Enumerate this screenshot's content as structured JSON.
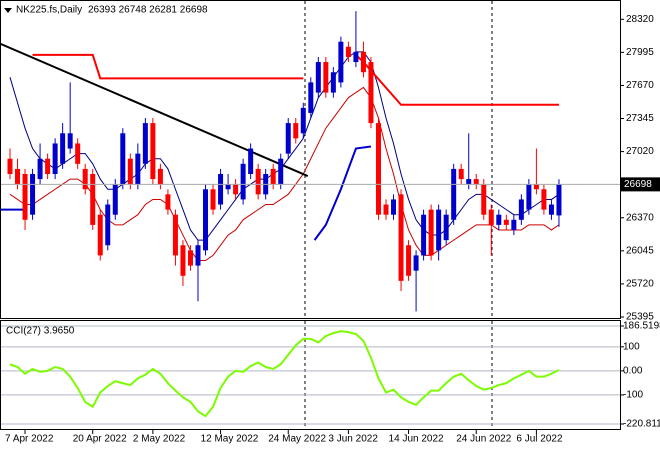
{
  "chart_data": {
    "type": "candlestick",
    "symbol": "NK225.fs,Daily",
    "ohlc_label": "26393 26748 26281 26698",
    "bull_color": "#0000cc",
    "bear_color": "#ff0000",
    "open": [
      26950,
      26850,
      26800,
      26400,
      26750,
      26950,
      26800,
      26900,
      27050,
      27100,
      26850,
      26800,
      26400,
      26100,
      26400,
      26700,
      26950,
      26700,
      26900,
      27300,
      26850,
      26600,
      26400,
      26100,
      26050,
      25900,
      26050,
      26650,
      26500,
      26650,
      26700,
      26550,
      26800,
      26850,
      26600,
      26850,
      26700,
      27000,
      27300,
      27200,
      27400,
      27600,
      27900,
      27600,
      27700,
      28050,
      27900,
      28000,
      27900,
      27300,
      26500,
      26400,
      26600,
      26100,
      25850,
      26000,
      26450,
      26050,
      26150,
      26350,
      26850,
      26700,
      26750,
      26700,
      26450,
      26300,
      26350,
      26250,
      26350,
      26450,
      26700,
      26650,
      26400,
      26393
    ],
    "high": [
      27050,
      26950,
      26850,
      26850,
      27100,
      27000,
      27150,
      27300,
      27700,
      27150,
      26900,
      26850,
      26450,
      26550,
      26750,
      27250,
      27000,
      27100,
      27350,
      27350,
      26900,
      26650,
      26450,
      26150,
      26100,
      26150,
      26700,
      26700,
      26850,
      26800,
      26750,
      26950,
      27100,
      26900,
      26850,
      26900,
      27000,
      27350,
      27350,
      27500,
      27750,
      27950,
      27950,
      27850,
      28150,
      28100,
      28400,
      28100,
      27950,
      27350,
      26550,
      26600,
      26650,
      26150,
      26050,
      26450,
      26500,
      26500,
      26450,
      26900,
      26900,
      27200,
      26800,
      26750,
      26500,
      26450,
      26400,
      26400,
      26600,
      26750,
      27050,
      26700,
      26550,
      26748
    ],
    "low": [
      26750,
      26650,
      26250,
      26350,
      26700,
      26750,
      26750,
      26850,
      27000,
      26850,
      26600,
      26250,
      25950,
      26050,
      26350,
      26650,
      26650,
      26650,
      26850,
      26700,
      26650,
      26400,
      25900,
      25700,
      25850,
      25550,
      26000,
      26400,
      26450,
      26600,
      26550,
      26500,
      26750,
      26550,
      26550,
      26650,
      26650,
      26950,
      27100,
      27150,
      27350,
      27550,
      27550,
      27550,
      27650,
      27900,
      27850,
      27750,
      27250,
      26350,
      26350,
      26350,
      25650,
      25750,
      25450,
      25950,
      25950,
      25950,
      26100,
      26300,
      26700,
      26650,
      26650,
      26350,
      26000,
      26250,
      26250,
      26200,
      26300,
      26400,
      26600,
      26400,
      26350,
      26281
    ],
    "close": [
      26800,
      26700,
      26350,
      26800,
      26950,
      26800,
      27100,
      27200,
      27200,
      26900,
      26650,
      26300,
      26000,
      26500,
      26700,
      27200,
      26700,
      27000,
      27300,
      26750,
      26700,
      26450,
      26000,
      25800,
      25900,
      26100,
      26650,
      26450,
      26800,
      26700,
      26600,
      26900,
      27050,
      26600,
      26800,
      26700,
      26950,
      27300,
      27150,
      27450,
      27700,
      27900,
      27600,
      27800,
      28100,
      27950,
      28000,
      27800,
      27300,
      26400,
      26400,
      26550,
      25750,
      25800,
      26000,
      26400,
      26000,
      26450,
      26400,
      26850,
      26750,
      26750,
      26700,
      26400,
      26300,
      26400,
      26300,
      26350,
      26550,
      26700,
      26650,
      26450,
      26500,
      26698
    ],
    "last_price": 26698,
    "ylim": [
      25385,
      28490
    ],
    "yticks": [
      28320,
      27995,
      27670,
      27345,
      27020,
      26695,
      26370,
      26045,
      25720,
      25395
    ],
    "xticks": [
      {
        "value": 2,
        "label": "7 Apr 2022"
      },
      {
        "value": 11,
        "label": "20 Apr 2022"
      },
      {
        "value": 19,
        "label": "2 May 2022"
      },
      {
        "value": 28,
        "label": "12 May 2022"
      },
      {
        "value": 37,
        "label": "24 May 2022"
      },
      {
        "value": 45,
        "label": "3 Jun 2022"
      },
      {
        "value": 53,
        "label": "14 Jun 2022"
      },
      {
        "value": 62,
        "label": "24 Jun 2022"
      },
      {
        "value": 70,
        "label": "6 Jul 2022"
      }
    ],
    "ma_fast": {
      "color": "#000080",
      "values": [
        27750,
        27500,
        27250,
        27050,
        26950,
        26900,
        26850,
        26900,
        26950,
        27000,
        27000,
        26900,
        26750,
        26650,
        26650,
        26700,
        26750,
        26800,
        26900,
        26950,
        26950,
        26850,
        26650,
        26450,
        26250,
        26150,
        26150,
        26250,
        26350,
        26450,
        26550,
        26650,
        26700,
        26750,
        26750,
        26800,
        26850,
        26950,
        27050,
        27150,
        27350,
        27550,
        27650,
        27750,
        27850,
        27950,
        28000,
        28000,
        27900,
        27650,
        27350,
        27100,
        26800,
        26550,
        26350,
        26250,
        26200,
        26200,
        26250,
        26350,
        26450,
        26550,
        26600,
        26600,
        26550,
        26500,
        26450,
        26400,
        26400,
        26450,
        26500,
        26550,
        26550,
        26600
      ]
    },
    "ma_slow": {
      "color": "#cc0000",
      "values": [
        26600,
        26550,
        26500,
        26500,
        26550,
        26600,
        26650,
        26700,
        26750,
        26750,
        26700,
        26600,
        26450,
        26350,
        26300,
        26300,
        26350,
        26400,
        26500,
        26550,
        26550,
        26500,
        26350,
        26200,
        26050,
        25950,
        25950,
        26000,
        26100,
        26200,
        26250,
        26350,
        26400,
        26450,
        26500,
        26500,
        26550,
        26600,
        26700,
        26800,
        26950,
        27100,
        27250,
        27350,
        27450,
        27550,
        27600,
        27650,
        27550,
        27350,
        27050,
        26800,
        26500,
        26250,
        26100,
        26000,
        26000,
        26050,
        26100,
        26150,
        26200,
        26250,
        26300,
        26300,
        26300,
        26250,
        26250,
        26250,
        26250,
        26300,
        26300,
        26300,
        26250,
        26300
      ]
    },
    "step_red": {
      "color": "#ff0000",
      "x": [
        3,
        11,
        12,
        39,
        null,
        46,
        47,
        52,
        73
      ],
      "values": [
        27970,
        27970,
        27740,
        27740,
        null,
        27970,
        27900,
        27480,
        27480
      ]
    },
    "step_blue": {
      "color": "#0000cc",
      "x": [
        -1.5,
        2,
        null,
        40.5,
        42,
        44,
        46,
        48
      ],
      "values": [
        26450,
        26450,
        null,
        26150,
        26300,
        26650,
        27050,
        27070
      ]
    },
    "trendline": {
      "color": "#000000",
      "x": [
        -1.3,
        39.6
      ],
      "values": [
        28080,
        26780
      ]
    },
    "cci": {
      "title": "CCI(27) 3.9650",
      "color": "#7cfc00",
      "values": [
        27,
        16,
        -12,
        8,
        -4,
        0,
        16,
        8,
        -24,
        -71,
        -129,
        -149,
        -90,
        -63,
        -43,
        -51,
        -59,
        -31,
        -16,
        8,
        -12,
        -51,
        -82,
        -110,
        -129,
        -169,
        -188,
        -149,
        -71,
        -24,
        0,
        -4,
        20,
        35,
        16,
        8,
        27,
        67,
        106,
        133,
        133,
        118,
        145,
        157,
        165,
        161,
        153,
        125,
        55,
        -31,
        -90,
        -78,
        -110,
        -129,
        -141,
        -110,
        -82,
        -82,
        -51,
        -24,
        -12,
        -39,
        -63,
        -78,
        -71,
        -59,
        -51,
        -31,
        -16,
        0,
        -24,
        -24,
        -12,
        3.965
      ],
      "ylim": [
        -220.811,
        186.5198
      ],
      "yticks": [
        186.5198,
        100,
        {
          "value": 0,
          "label": "0.00"
        },
        -100,
        -220.811
      ]
    }
  }
}
